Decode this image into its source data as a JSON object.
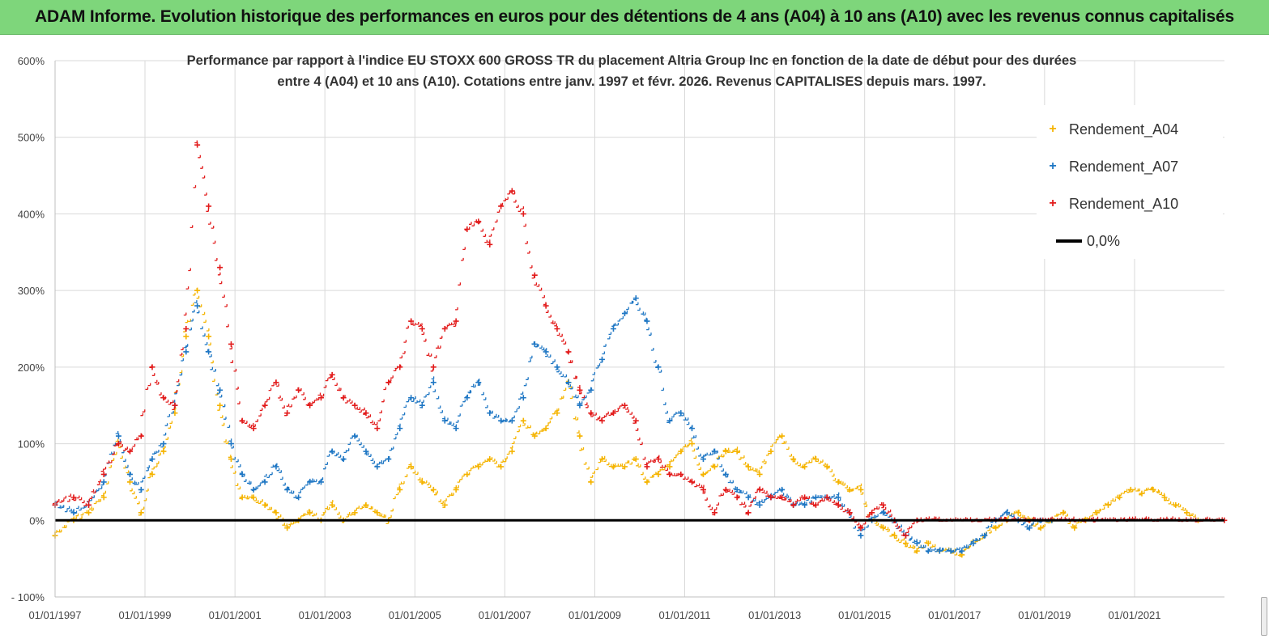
{
  "banner": {
    "title": "ADAM Informe. Evolution historique des performances en euros pour des détentions de 4 ans (A04) à 10 ans (A10) avec les revenus connus capitalisés"
  },
  "chart_data": {
    "type": "scatter",
    "title_line1": "Performance par rapport à l'indice EU STOXX 600 GROSS TR  du placement Altria Group Inc en fonction de la date de début pour des durées",
    "title_line2": "entre 4 (A04) et 10 ans (A10). Cotations entre janv. 1997 et févr. 2026. Revenus CAPITALISES depuis mars. 1997.",
    "x_axis": {
      "type": "date",
      "range": [
        "1997-01-01",
        "2023-01-01"
      ],
      "tick_labels": [
        "01/01/1997",
        "01/01/1999",
        "01/01/2001",
        "01/01/2003",
        "01/01/2005",
        "01/01/2007",
        "01/01/2009",
        "01/01/2011",
        "01/01/2013",
        "01/01/2015",
        "01/01/2017",
        "01/01/2019",
        "01/01/2021"
      ]
    },
    "y_axis": {
      "range": [
        -100,
        600
      ],
      "unit": "%",
      "tick_labels": [
        "- 100%",
        "0%",
        "100%",
        "200%",
        "300%",
        "400%",
        "500%",
        "600%"
      ]
    },
    "grid": true,
    "legend_position": "top-right",
    "series": [
      {
        "name": "Rendement_A04",
        "color": "#f5b400",
        "marker": "+",
        "points": [
          [
            "1997-01-01",
            -20
          ],
          [
            "1997-06-01",
            0
          ],
          [
            "1997-10-01",
            10
          ],
          [
            "1998-02-01",
            30
          ],
          [
            "1998-06-01",
            100
          ],
          [
            "1998-09-01",
            50
          ],
          [
            "1998-12-01",
            10
          ],
          [
            "1999-03-01",
            60
          ],
          [
            "1999-06-01",
            90
          ],
          [
            "1999-09-01",
            140
          ],
          [
            "1999-12-01",
            240
          ],
          [
            "2000-03-01",
            300
          ],
          [
            "2000-06-01",
            240
          ],
          [
            "2000-09-01",
            150
          ],
          [
            "2000-12-01",
            80
          ],
          [
            "2001-03-01",
            30
          ],
          [
            "2001-06-01",
            30
          ],
          [
            "2001-09-01",
            20
          ],
          [
            "2001-12-01",
            10
          ],
          [
            "2002-03-01",
            -10
          ],
          [
            "2002-06-01",
            0
          ],
          [
            "2002-09-01",
            10
          ],
          [
            "2002-12-01",
            0
          ],
          [
            "2003-03-01",
            20
          ],
          [
            "2003-06-01",
            0
          ],
          [
            "2003-09-01",
            10
          ],
          [
            "2003-12-01",
            20
          ],
          [
            "2004-03-01",
            10
          ],
          [
            "2004-06-01",
            0
          ],
          [
            "2004-09-01",
            40
          ],
          [
            "2004-12-01",
            70
          ],
          [
            "2005-03-01",
            50
          ],
          [
            "2005-06-01",
            40
          ],
          [
            "2005-09-01",
            20
          ],
          [
            "2005-12-01",
            40
          ],
          [
            "2006-03-01",
            60
          ],
          [
            "2006-06-01",
            70
          ],
          [
            "2006-09-01",
            80
          ],
          [
            "2006-12-01",
            70
          ],
          [
            "2007-03-01",
            90
          ],
          [
            "2007-06-01",
            130
          ],
          [
            "2007-09-01",
            110
          ],
          [
            "2007-12-01",
            120
          ],
          [
            "2008-03-01",
            140
          ],
          [
            "2008-06-01",
            180
          ],
          [
            "2008-09-01",
            110
          ],
          [
            "2008-12-01",
            50
          ],
          [
            "2009-03-01",
            80
          ],
          [
            "2009-06-01",
            70
          ],
          [
            "2009-09-01",
            70
          ],
          [
            "2009-12-01",
            80
          ],
          [
            "2010-03-01",
            50
          ],
          [
            "2010-06-01",
            60
          ],
          [
            "2010-09-01",
            70
          ],
          [
            "2010-12-01",
            90
          ],
          [
            "2011-03-01",
            100
          ],
          [
            "2011-06-01",
            60
          ],
          [
            "2011-09-01",
            70
          ],
          [
            "2011-12-01",
            90
          ],
          [
            "2012-03-01",
            90
          ],
          [
            "2012-06-01",
            70
          ],
          [
            "2012-09-01",
            60
          ],
          [
            "2012-12-01",
            90
          ],
          [
            "2013-03-01",
            110
          ],
          [
            "2013-06-01",
            80
          ],
          [
            "2013-09-01",
            70
          ],
          [
            "2013-12-01",
            80
          ],
          [
            "2014-03-01",
            70
          ],
          [
            "2014-06-01",
            50
          ],
          [
            "2014-09-01",
            40
          ],
          [
            "2014-12-01",
            40
          ],
          [
            "2015-03-01",
            0
          ],
          [
            "2015-06-01",
            -10
          ],
          [
            "2015-09-01",
            -20
          ],
          [
            "2015-12-01",
            -30
          ],
          [
            "2016-03-01",
            -40
          ],
          [
            "2016-06-01",
            -30
          ],
          [
            "2016-09-01",
            -40
          ],
          [
            "2016-12-01",
            -40
          ],
          [
            "2017-03-01",
            -45
          ],
          [
            "2017-06-01",
            -30
          ],
          [
            "2017-09-01",
            -20
          ],
          [
            "2017-12-01",
            -10
          ],
          [
            "2018-03-01",
            0
          ],
          [
            "2018-06-01",
            10
          ],
          [
            "2018-09-01",
            0
          ],
          [
            "2018-12-01",
            -10
          ],
          [
            "2019-03-01",
            0
          ],
          [
            "2019-06-01",
            10
          ],
          [
            "2019-09-01",
            -10
          ],
          [
            "2019-12-01",
            0
          ],
          [
            "2020-03-01",
            10
          ],
          [
            "2020-06-01",
            20
          ],
          [
            "2020-09-01",
            30
          ],
          [
            "2020-12-01",
            40
          ],
          [
            "2021-03-01",
            35
          ],
          [
            "2021-06-01",
            40
          ],
          [
            "2021-09-01",
            30
          ],
          [
            "2021-12-01",
            20
          ],
          [
            "2022-03-01",
            10
          ],
          [
            "2022-06-01",
            0
          ]
        ]
      },
      {
        "name": "Rendement_A07",
        "color": "#1f77c4",
        "marker": "+",
        "points": [
          [
            "1997-01-01",
            20
          ],
          [
            "1997-06-01",
            10
          ],
          [
            "1997-10-01",
            20
          ],
          [
            "1998-02-01",
            50
          ],
          [
            "1998-06-01",
            110
          ],
          [
            "1998-09-01",
            60
          ],
          [
            "1998-12-01",
            40
          ],
          [
            "1999-03-01",
            80
          ],
          [
            "1999-06-01",
            100
          ],
          [
            "1999-09-01",
            150
          ],
          [
            "1999-12-01",
            220
          ],
          [
            "2000-03-01",
            280
          ],
          [
            "2000-06-01",
            220
          ],
          [
            "2000-09-01",
            170
          ],
          [
            "2000-12-01",
            100
          ],
          [
            "2001-03-01",
            60
          ],
          [
            "2001-06-01",
            40
          ],
          [
            "2001-09-01",
            50
          ],
          [
            "2001-12-01",
            70
          ],
          [
            "2002-03-01",
            40
          ],
          [
            "2002-06-01",
            30
          ],
          [
            "2002-09-01",
            50
          ],
          [
            "2002-12-01",
            50
          ],
          [
            "2003-03-01",
            90
          ],
          [
            "2003-06-01",
            80
          ],
          [
            "2003-09-01",
            110
          ],
          [
            "2003-12-01",
            90
          ],
          [
            "2004-03-01",
            70
          ],
          [
            "2004-06-01",
            80
          ],
          [
            "2004-09-01",
            120
          ],
          [
            "2004-12-01",
            160
          ],
          [
            "2005-03-01",
            150
          ],
          [
            "2005-06-01",
            180
          ],
          [
            "2005-09-01",
            130
          ],
          [
            "2005-12-01",
            120
          ],
          [
            "2006-03-01",
            160
          ],
          [
            "2006-06-01",
            180
          ],
          [
            "2006-09-01",
            140
          ],
          [
            "2006-12-01",
            130
          ],
          [
            "2007-03-01",
            130
          ],
          [
            "2007-06-01",
            160
          ],
          [
            "2007-09-01",
            230
          ],
          [
            "2007-12-01",
            220
          ],
          [
            "2008-03-01",
            200
          ],
          [
            "2008-06-01",
            180
          ],
          [
            "2008-09-01",
            150
          ],
          [
            "2008-12-01",
            170
          ],
          [
            "2009-03-01",
            210
          ],
          [
            "2009-06-01",
            250
          ],
          [
            "2009-09-01",
            270
          ],
          [
            "2009-12-01",
            290
          ],
          [
            "2010-03-01",
            260
          ],
          [
            "2010-06-01",
            200
          ],
          [
            "2010-09-01",
            130
          ],
          [
            "2010-12-01",
            140
          ],
          [
            "2011-03-01",
            120
          ],
          [
            "2011-06-01",
            80
          ],
          [
            "2011-09-01",
            90
          ],
          [
            "2011-12-01",
            60
          ],
          [
            "2012-03-01",
            40
          ],
          [
            "2012-06-01",
            30
          ],
          [
            "2012-09-01",
            20
          ],
          [
            "2012-12-01",
            30
          ],
          [
            "2013-03-01",
            40
          ],
          [
            "2013-06-01",
            20
          ],
          [
            "2013-09-01",
            20
          ],
          [
            "2013-12-01",
            30
          ],
          [
            "2014-03-01",
            30
          ],
          [
            "2014-06-01",
            30
          ],
          [
            "2014-09-01",
            10
          ],
          [
            "2014-12-01",
            -20
          ],
          [
            "2015-03-01",
            0
          ],
          [
            "2015-06-01",
            10
          ],
          [
            "2015-09-01",
            0
          ],
          [
            "2015-12-01",
            -20
          ],
          [
            "2016-03-01",
            -30
          ],
          [
            "2016-06-01",
            -40
          ],
          [
            "2016-09-01",
            -40
          ],
          [
            "2016-12-01",
            -40
          ],
          [
            "2017-03-01",
            -40
          ],
          [
            "2017-06-01",
            -30
          ],
          [
            "2017-09-01",
            -20
          ],
          [
            "2017-12-01",
            0
          ],
          [
            "2018-03-01",
            10
          ],
          [
            "2018-06-01",
            0
          ],
          [
            "2018-09-01",
            -10
          ],
          [
            "2018-12-01",
            0
          ],
          [
            "2019-03-01",
            0
          ]
        ]
      },
      {
        "name": "Rendement_A10",
        "color": "#e21b1b",
        "marker": "+",
        "points": [
          [
            "1997-01-01",
            20
          ],
          [
            "1997-06-01",
            30
          ],
          [
            "1997-10-01",
            20
          ],
          [
            "1998-02-01",
            60
          ],
          [
            "1998-06-01",
            100
          ],
          [
            "1998-09-01",
            90
          ],
          [
            "1998-12-01",
            110
          ],
          [
            "1999-03-01",
            200
          ],
          [
            "1999-06-01",
            160
          ],
          [
            "1999-09-01",
            150
          ],
          [
            "1999-12-01",
            250
          ],
          [
            "2000-03-01",
            490
          ],
          [
            "2000-06-01",
            410
          ],
          [
            "2000-09-01",
            330
          ],
          [
            "2000-12-01",
            230
          ],
          [
            "2001-03-01",
            130
          ],
          [
            "2001-06-01",
            120
          ],
          [
            "2001-09-01",
            150
          ],
          [
            "2001-12-01",
            180
          ],
          [
            "2002-03-01",
            140
          ],
          [
            "2002-06-01",
            170
          ],
          [
            "2002-09-01",
            150
          ],
          [
            "2002-12-01",
            160
          ],
          [
            "2003-03-01",
            190
          ],
          [
            "2003-06-01",
            160
          ],
          [
            "2003-09-01",
            150
          ],
          [
            "2003-12-01",
            140
          ],
          [
            "2004-03-01",
            120
          ],
          [
            "2004-06-01",
            180
          ],
          [
            "2004-09-01",
            200
          ],
          [
            "2004-12-01",
            260
          ],
          [
            "2005-03-01",
            250
          ],
          [
            "2005-06-01",
            200
          ],
          [
            "2005-09-01",
            250
          ],
          [
            "2005-12-01",
            260
          ],
          [
            "2006-03-01",
            380
          ],
          [
            "2006-06-01",
            390
          ],
          [
            "2006-09-01",
            360
          ],
          [
            "2006-12-01",
            410
          ],
          [
            "2007-03-01",
            430
          ],
          [
            "2007-06-01",
            400
          ],
          [
            "2007-09-01",
            320
          ],
          [
            "2007-12-01",
            280
          ],
          [
            "2008-03-01",
            250
          ],
          [
            "2008-06-01",
            220
          ],
          [
            "2008-09-01",
            170
          ],
          [
            "2008-12-01",
            140
          ],
          [
            "2009-03-01",
            130
          ],
          [
            "2009-06-01",
            140
          ],
          [
            "2009-09-01",
            150
          ],
          [
            "2009-12-01",
            130
          ],
          [
            "2010-03-01",
            70
          ],
          [
            "2010-06-01",
            80
          ],
          [
            "2010-09-01",
            60
          ],
          [
            "2010-12-01",
            60
          ],
          [
            "2011-03-01",
            50
          ],
          [
            "2011-06-01",
            40
          ],
          [
            "2011-09-01",
            10
          ],
          [
            "2011-12-01",
            40
          ],
          [
            "2012-03-01",
            30
          ],
          [
            "2012-06-01",
            10
          ],
          [
            "2012-09-01",
            40
          ],
          [
            "2012-12-01",
            30
          ],
          [
            "2013-03-01",
            30
          ],
          [
            "2013-06-01",
            20
          ],
          [
            "2013-09-01",
            30
          ],
          [
            "2013-12-01",
            20
          ],
          [
            "2014-03-01",
            30
          ],
          [
            "2014-06-01",
            20
          ],
          [
            "2014-09-01",
            10
          ],
          [
            "2014-12-01",
            -10
          ],
          [
            "2015-03-01",
            10
          ],
          [
            "2015-06-01",
            20
          ],
          [
            "2015-09-01",
            0
          ],
          [
            "2015-12-01",
            -20
          ],
          [
            "2016-03-01",
            0
          ],
          [
            "2022-12-31",
            0
          ]
        ]
      },
      {
        "name": "0,0%",
        "color": "#000000",
        "marker": "line",
        "points": [
          [
            "1997-01-01",
            0
          ],
          [
            "2022-12-31",
            0
          ]
        ]
      }
    ]
  }
}
